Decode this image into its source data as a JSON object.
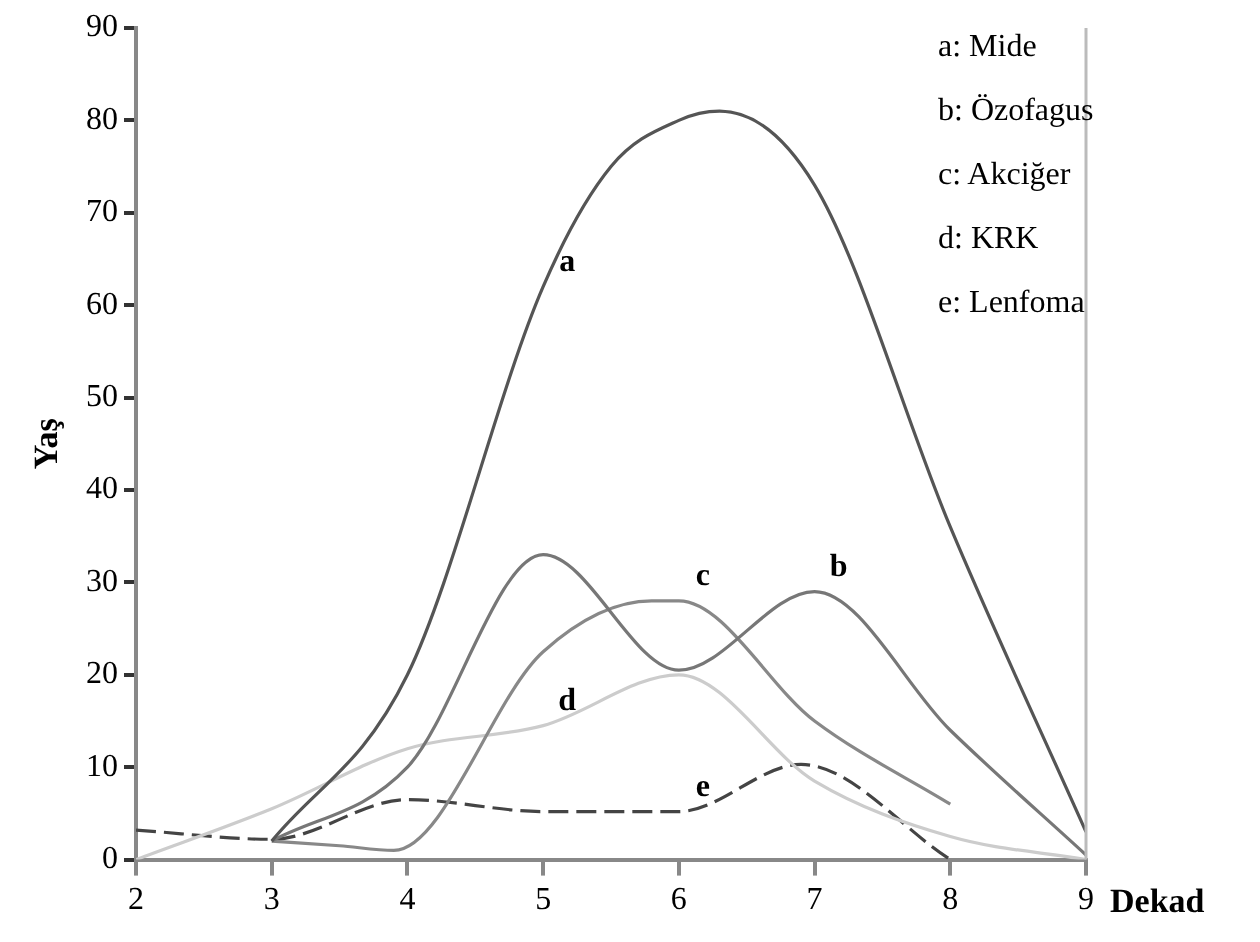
{
  "chart_data": {
    "type": "line",
    "xlabel": "Dekad",
    "ylabel": "Yaş",
    "xlim": [
      2,
      9
    ],
    "ylim": [
      0,
      90
    ],
    "xticks": [
      2,
      3,
      4,
      5,
      6,
      7,
      8,
      9
    ],
    "yticks": [
      0,
      10,
      20,
      30,
      40,
      50,
      60,
      70,
      80,
      90
    ],
    "grid": false,
    "legend": false,
    "marker": "none",
    "series": [
      {
        "color": "#555555",
        "x": [
          3,
          4,
          5,
          5.5,
          6,
          6.3,
          7,
          8,
          9
        ],
        "values": [
          2,
          20,
          62,
          75,
          80,
          81,
          73,
          36,
          3
        ]
      },
      {
        "color": "#777777",
        "x": [
          3,
          4,
          5,
          6,
          7,
          8,
          9
        ],
        "values": [
          2,
          10,
          33,
          20.5,
          29,
          14,
          0.5
        ]
      },
      {
        "color": "#888888",
        "x": [
          3,
          3.5,
          3.9,
          5,
          5.8,
          6,
          7,
          8
        ],
        "values": [
          2,
          1.5,
          1,
          22.5,
          28,
          28,
          15,
          6
        ]
      },
      {
        "color": "#cccccc",
        "x": [
          2,
          3,
          4,
          5,
          6,
          7,
          8,
          9
        ],
        "values": [
          0,
          5.5,
          12,
          14.5,
          20,
          8.5,
          2.5,
          0
        ]
      },
      {
        "color": "#444444",
        "line_style": "dashed",
        "x": [
          2,
          3,
          4,
          5,
          6,
          6.9,
          8
        ],
        "values": [
          3.2,
          2.2,
          6.5,
          5.2,
          5.2,
          10.3,
          0
        ]
      }
    ],
    "annotations": [
      {
        "text": "a",
        "x": 5,
        "y": 62
      },
      {
        "text": "b",
        "x": 7,
        "y": 29
      },
      {
        "text": "c",
        "x": 6,
        "y": 28
      },
      {
        "text": "d",
        "x": 5,
        "y": 14.5
      },
      {
        "text": "e",
        "x": 6,
        "y": 5.2
      },
      "a: Mide",
      "b: Özofagus",
      "c: Akciğer",
      "d: KRK",
      "e: Lenfoma"
    ]
  }
}
